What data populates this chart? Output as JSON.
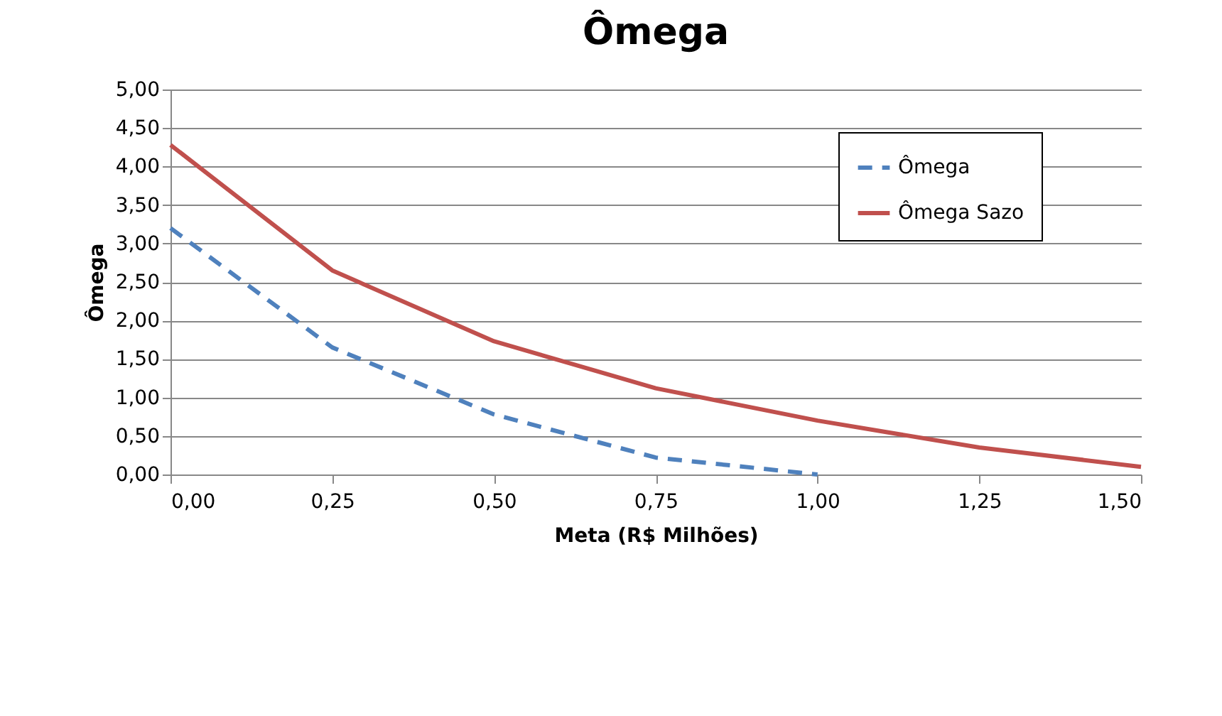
{
  "chart_data": {
    "type": "line",
    "title": "Ômega",
    "xlabel": "Meta (R$ Milhões)",
    "ylabel": "Ômega",
    "xlim": [
      0,
      1.5
    ],
    "xticks": [
      {
        "value": 0,
        "label": "0,00"
      },
      {
        "value": 0.25,
        "label": "0,25"
      },
      {
        "value": 0.5,
        "label": "0,50"
      },
      {
        "value": 0.75,
        "label": "0,75"
      },
      {
        "value": 1,
        "label": "1,00"
      },
      {
        "value": 1.25,
        "label": "1,25"
      },
      {
        "value": 1.5,
        "label": "1,50"
      }
    ],
    "ylim": [
      0,
      5
    ],
    "yticks": [
      {
        "value": 0,
        "label": "0,00"
      },
      {
        "value": 0.5,
        "label": "0,50"
      },
      {
        "value": 1,
        "label": "1,00"
      },
      {
        "value": 1.5,
        "label": "1,50"
      },
      {
        "value": 2,
        "label": "2,00"
      },
      {
        "value": 2.5,
        "label": "2,50"
      },
      {
        "value": 3,
        "label": "3,00"
      },
      {
        "value": 3.5,
        "label": "3,50"
      },
      {
        "value": 4,
        "label": "4,00"
      },
      {
        "value": 4.5,
        "label": "4,50"
      },
      {
        "value": 5,
        "label": "5,00"
      }
    ],
    "grid": "y",
    "legend": "top right",
    "marker": "none",
    "series": [
      {
        "name": "Ômega",
        "color": "#4f81bd",
        "line_style": "dashed",
        "x": [
          0,
          0.25,
          0.5,
          0.75,
          1
        ],
        "values": [
          3.2,
          1.65,
          0.78,
          0.22,
          0
        ]
      },
      {
        "name": "Ômega Sazo",
        "color": "#c0504d",
        "line_style": "solid",
        "x": [
          0,
          0.25,
          0.5,
          0.75,
          1,
          1.25,
          1.5
        ],
        "values": [
          4.28,
          2.65,
          1.73,
          1.12,
          0.7,
          0.35,
          0.1
        ]
      }
    ]
  }
}
